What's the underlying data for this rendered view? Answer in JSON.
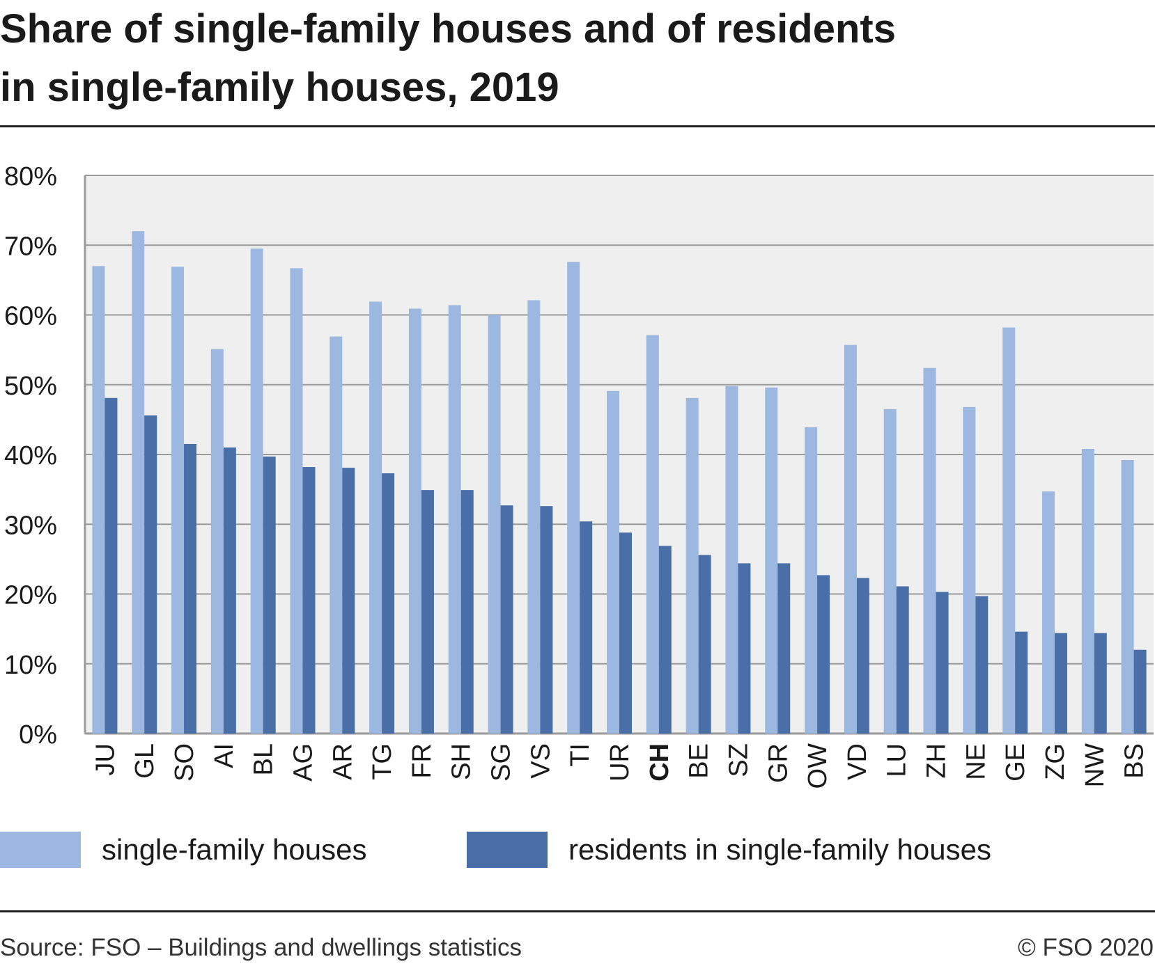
{
  "title": {
    "line1": "Share of single-family houses and of residents",
    "line2": "in single-family houses, 2019"
  },
  "colors": {
    "houses": "#9db8e0",
    "residents": "#4a6ea8",
    "plot_bg": "#efefef",
    "grid": "#9a9a9a"
  },
  "legend": {
    "houses_label": "single-family houses",
    "residents_label": "residents in single-family houses"
  },
  "footer": {
    "source": "Source: FSO – Buildings and dwellings statistics",
    "copyright": "© FSO 2020"
  },
  "chart_data": {
    "type": "bar",
    "categories": [
      "JU",
      "GL",
      "SO",
      "AI",
      "BL",
      "AG",
      "AR",
      "TG",
      "FR",
      "SH",
      "SG",
      "VS",
      "TI",
      "UR",
      "CH",
      "BE",
      "SZ",
      "GR",
      "OW",
      "VD",
      "LU",
      "ZH",
      "NE",
      "GE",
      "ZG",
      "NW",
      "BS"
    ],
    "highlighted_category": "CH",
    "series": [
      {
        "name": "single-family houses",
        "values": [
          67.0,
          72.0,
          66.9,
          55.1,
          69.5,
          66.7,
          56.9,
          61.9,
          60.9,
          61.4,
          60.0,
          62.1,
          67.6,
          49.1,
          57.1,
          48.1,
          49.8,
          49.6,
          43.9,
          55.7,
          46.5,
          52.4,
          46.8,
          58.2,
          34.7,
          40.8,
          39.2
        ]
      },
      {
        "name": "residents in single-family houses",
        "values": [
          48.1,
          45.6,
          41.5,
          41.0,
          39.7,
          38.2,
          38.1,
          37.3,
          34.9,
          34.9,
          32.7,
          32.6,
          30.4,
          28.8,
          26.9,
          25.6,
          24.4,
          24.4,
          22.7,
          22.3,
          21.1,
          20.3,
          19.7,
          14.6,
          14.4,
          14.4,
          12.0
        ]
      }
    ],
    "yticks": [
      "0%",
      "10%",
      "20%",
      "30%",
      "40%",
      "50%",
      "60%",
      "70%",
      "80%"
    ],
    "ylim": [
      0,
      80
    ],
    "grid": true,
    "legend_position": "bottom"
  }
}
